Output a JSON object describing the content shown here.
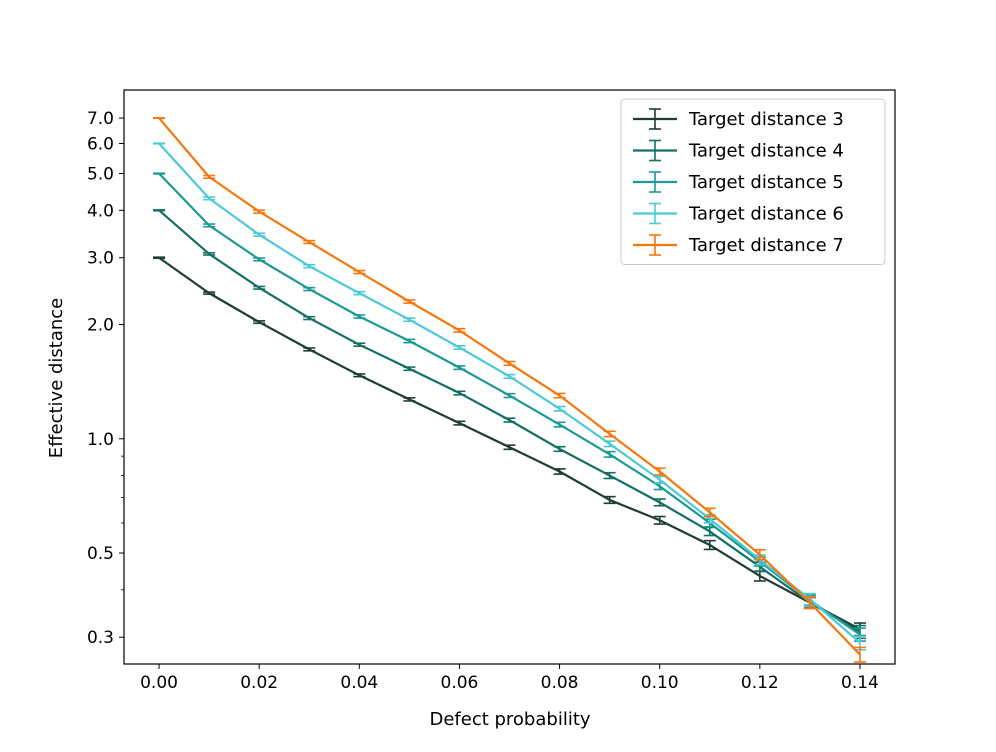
{
  "chart_data": {
    "type": "line",
    "title": "",
    "xlabel": "Defect probability",
    "ylabel": "Effective distance",
    "yscale": "log",
    "xlim": [
      -0.007,
      0.147
    ],
    "ylim": [
      0.255,
      8.3
    ],
    "x": [
      0.0,
      0.01,
      0.02,
      0.03,
      0.04,
      0.05,
      0.06,
      0.07,
      0.08,
      0.09,
      0.1,
      0.11,
      0.12,
      0.13,
      0.14
    ],
    "x_ticks": [
      0.0,
      0.02,
      0.04,
      0.06,
      0.08,
      0.1,
      0.12,
      0.14
    ],
    "x_tick_labels": [
      "0.00",
      "0.02",
      "0.04",
      "0.06",
      "0.08",
      "0.10",
      "0.12",
      "0.14"
    ],
    "y_ticks": [
      0.3,
      0.5,
      1.0,
      2.0,
      3.0,
      4.0,
      5.0,
      6.0,
      7.0
    ],
    "y_tick_labels": [
      "0.3",
      "0.5",
      "1.0",
      "2.0",
      "3.0",
      "4.0",
      "5.0",
      "6.0",
      "7.0"
    ],
    "y_minor_ticks": [
      0.4,
      0.6,
      0.7,
      0.8,
      0.9
    ],
    "legend_position": "top-right",
    "grid": false,
    "series": [
      {
        "name": "Target distance 3",
        "color": "#1f3d33",
        "values": [
          3.0,
          2.42,
          2.03,
          1.72,
          1.47,
          1.27,
          1.1,
          0.95,
          0.82,
          0.69,
          0.61,
          0.525,
          0.435,
          0.37,
          0.315
        ],
        "errors": [
          0.01,
          0.015,
          0.015,
          0.015,
          0.012,
          0.012,
          0.012,
          0.012,
          0.013,
          0.014,
          0.014,
          0.014,
          0.013,
          0.012,
          0.012
        ]
      },
      {
        "name": "Target distance 4",
        "color": "#136f63",
        "values": [
          4.0,
          3.07,
          2.5,
          2.08,
          1.77,
          1.53,
          1.32,
          1.12,
          0.94,
          0.8,
          0.68,
          0.57,
          0.46,
          0.37,
          0.31
        ],
        "errors": [
          0.01,
          0.02,
          0.02,
          0.018,
          0.016,
          0.015,
          0.014,
          0.013,
          0.013,
          0.014,
          0.014,
          0.014,
          0.013,
          0.012,
          0.012
        ]
      },
      {
        "name": "Target distance 5",
        "color": "#1b9a93",
        "values": [
          5.0,
          3.65,
          2.97,
          2.48,
          2.1,
          1.81,
          1.54,
          1.3,
          1.09,
          0.91,
          0.75,
          0.6,
          0.475,
          0.375,
          0.305
        ],
        "errors": [
          0.01,
          0.03,
          0.025,
          0.022,
          0.02,
          0.018,
          0.016,
          0.015,
          0.015,
          0.015,
          0.015,
          0.014,
          0.013,
          0.012,
          0.012
        ]
      },
      {
        "name": "Target distance 6",
        "color": "#4dc9d6",
        "values": [
          6.0,
          4.3,
          3.45,
          2.85,
          2.42,
          2.06,
          1.74,
          1.46,
          1.2,
          0.97,
          0.78,
          0.615,
          0.48,
          0.378,
          0.29
        ],
        "errors": [
          0.01,
          0.035,
          0.03,
          0.025,
          0.022,
          0.02,
          0.018,
          0.016,
          0.016,
          0.016,
          0.016,
          0.015,
          0.014,
          0.013,
          0.012
        ]
      },
      {
        "name": "Target distance 7",
        "color": "#f5780e",
        "values": [
          7.0,
          4.9,
          3.97,
          3.3,
          2.75,
          2.3,
          1.93,
          1.58,
          1.3,
          1.03,
          0.82,
          0.64,
          0.495,
          0.37,
          0.27
        ],
        "errors": [
          0.01,
          0.04,
          0.035,
          0.028,
          0.025,
          0.022,
          0.02,
          0.018,
          0.017,
          0.017,
          0.017,
          0.016,
          0.015,
          0.013,
          0.012
        ]
      }
    ]
  }
}
